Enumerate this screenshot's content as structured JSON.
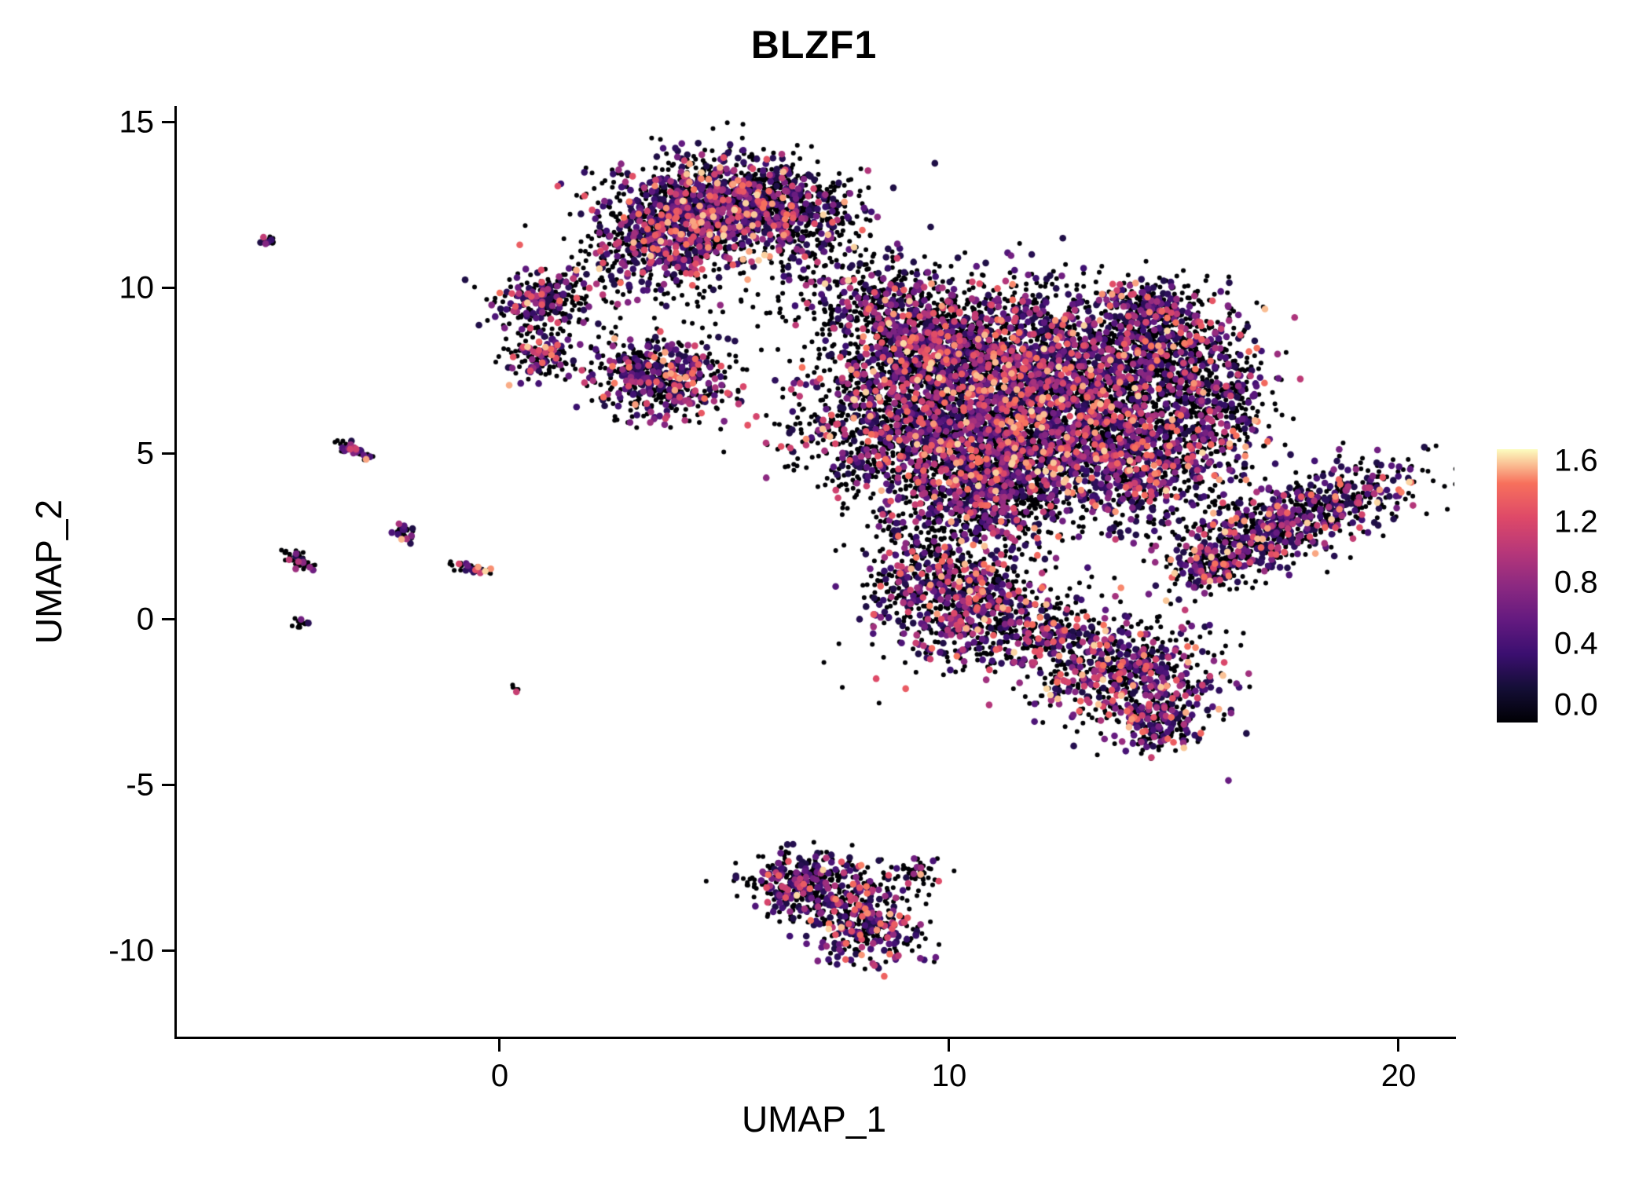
{
  "title": "BLZF1",
  "axes": {
    "x": {
      "label": "UMAP_1",
      "ticks": [
        "0",
        "10",
        "20"
      ]
    },
    "y": {
      "label": "UMAP_2",
      "ticks": [
        "15",
        "10",
        "5",
        "0",
        "-5",
        "-10"
      ]
    }
  },
  "legend": {
    "ticks": [
      "1.6",
      "1.2",
      "0.8",
      "0.4",
      "0.0"
    ]
  },
  "chart_data": {
    "type": "scatter",
    "title": "BLZF1",
    "xlabel": "UMAP_1",
    "ylabel": "UMAP_2",
    "xlim": [
      -7.2,
      21.2
    ],
    "ylim": [
      -12.6,
      15.5
    ],
    "x_tick_values": [
      0,
      10,
      20
    ],
    "y_tick_values": [
      15,
      10,
      5,
      0,
      -5,
      -10
    ],
    "grid": false,
    "legend_position": "right",
    "colorbar": {
      "tick_values": [
        1.6,
        1.2,
        0.8,
        0.4,
        0.0
      ],
      "range": [
        0,
        1.6
      ]
    },
    "colormap": [
      [
        0.0,
        "#000004"
      ],
      [
        0.2,
        "#140e36"
      ],
      [
        0.4,
        "#3b0f70"
      ],
      [
        0.6,
        "#641a80"
      ],
      [
        0.8,
        "#8c2981"
      ],
      [
        1.0,
        "#b73779"
      ],
      [
        1.2,
        "#de4968"
      ],
      [
        1.4,
        "#f7705c"
      ],
      [
        1.6,
        "#fcfdbf"
      ]
    ],
    "point_style": {
      "r_zero": 3.0,
      "r_expressed": 4.3
    },
    "sampling": {
      "seed": 42,
      "expr_min": 0.25,
      "expr_span": 1.3,
      "expr_power": 2
    },
    "clusters": [
      {
        "cx": 4.8,
        "cy": 12.4,
        "sx": 1.25,
        "sy": 0.75,
        "rot": 0,
        "n": 1300,
        "p_expr": 0.45
      },
      {
        "cx": 3.6,
        "cy": 11.2,
        "sx": 0.9,
        "sy": 0.6,
        "rot": 20,
        "n": 400,
        "p_expr": 0.45
      },
      {
        "cx": 6.3,
        "cy": 12.6,
        "sx": 0.8,
        "sy": 0.55,
        "rot": 0,
        "n": 300,
        "p_expr": 0.35
      },
      {
        "cx": 6.9,
        "cy": 11.3,
        "sx": 0.7,
        "sy": 0.7,
        "rot": 0,
        "n": 120,
        "p_expr": 0.25
      },
      {
        "cx": 4.5,
        "cy": 9.8,
        "sx": 1.6,
        "sy": 0.5,
        "rot": 0,
        "n": 60,
        "p_expr": 0.25
      },
      {
        "cx": 1.05,
        "cy": 9.55,
        "sx": 0.55,
        "sy": 0.45,
        "rot": 0,
        "n": 260,
        "p_expr": 0.4
      },
      {
        "cx": 0.95,
        "cy": 8.0,
        "sx": 0.45,
        "sy": 0.4,
        "rot": 0,
        "n": 140,
        "p_expr": 0.4
      },
      {
        "cx": 3.6,
        "cy": 7.3,
        "sx": 0.8,
        "sy": 0.62,
        "rot": -15,
        "n": 500,
        "p_expr": 0.48
      },
      {
        "cx": 9.6,
        "cy": 8.3,
        "sx": 1.1,
        "sy": 0.95,
        "rot": 0,
        "n": 1300,
        "p_expr": 0.4
      },
      {
        "cx": 12.1,
        "cy": 7.0,
        "sx": 1.5,
        "sy": 1.35,
        "rot": 0,
        "n": 2400,
        "p_expr": 0.45
      },
      {
        "cx": 10.4,
        "cy": 5.1,
        "sx": 1.3,
        "sy": 1.0,
        "rot": 0,
        "n": 1200,
        "p_expr": 0.42
      },
      {
        "cx": 13.9,
        "cy": 4.8,
        "sx": 1.1,
        "sy": 1.0,
        "rot": 0,
        "n": 900,
        "p_expr": 0.4
      },
      {
        "cx": 8.5,
        "cy": 6.2,
        "sx": 0.75,
        "sy": 1.0,
        "rot": 0,
        "n": 450,
        "p_expr": 0.4
      },
      {
        "cx": 14.9,
        "cy": 7.9,
        "sx": 0.95,
        "sy": 0.85,
        "rot": 0,
        "n": 650,
        "p_expr": 0.35
      },
      {
        "cx": 15.9,
        "cy": 6.1,
        "sx": 0.65,
        "sy": 0.95,
        "rot": 0,
        "n": 350,
        "p_expr": 0.3
      },
      {
        "cx": 14.4,
        "cy": 9.4,
        "sx": 0.65,
        "sy": 0.45,
        "rot": 0,
        "n": 250,
        "p_expr": 0.35
      },
      {
        "cx": 8.3,
        "cy": 9.9,
        "sx": 0.8,
        "sy": 0.6,
        "rot": 0,
        "n": 200,
        "p_expr": 0.3
      },
      {
        "cx": 11.0,
        "cy": 3.6,
        "sx": 0.9,
        "sy": 0.7,
        "rot": 0,
        "n": 500,
        "p_expr": 0.4
      },
      {
        "cx": 9.3,
        "cy": 2.2,
        "sx": 0.6,
        "sy": 0.8,
        "rot": 0,
        "n": 150,
        "p_expr": 0.3
      },
      {
        "cx": 7.0,
        "cy": 5.6,
        "sx": 0.7,
        "sy": 0.8,
        "rot": 0,
        "n": 80,
        "p_expr": 0.3
      },
      {
        "cx": 17.5,
        "cy": 2.9,
        "sx": 1.45,
        "sy": 0.55,
        "rot": 28,
        "n": 850,
        "p_expr": 0.45
      },
      {
        "cx": 15.9,
        "cy": 1.7,
        "sx": 0.5,
        "sy": 0.4,
        "rot": 20,
        "n": 150,
        "p_expr": 0.35
      },
      {
        "cx": 10.2,
        "cy": 0.6,
        "sx": 0.95,
        "sy": 0.95,
        "rot": 0,
        "n": 750,
        "p_expr": 0.42
      },
      {
        "cx": 11.9,
        "cy": -0.4,
        "sx": 0.7,
        "sy": 0.6,
        "rot": 0,
        "n": 250,
        "p_expr": 0.38
      },
      {
        "cx": 13.9,
        "cy": -1.7,
        "sx": 1.05,
        "sy": 0.8,
        "rot": -20,
        "n": 700,
        "p_expr": 0.45
      },
      {
        "cx": 14.6,
        "cy": -3.1,
        "sx": 0.5,
        "sy": 0.45,
        "rot": 0,
        "n": 150,
        "p_expr": 0.4
      },
      {
        "cx": 6.9,
        "cy": -8.0,
        "sx": 0.75,
        "sy": 0.5,
        "rot": -15,
        "n": 420,
        "p_expr": 0.45
      },
      {
        "cx": 8.2,
        "cy": -9.2,
        "sx": 0.55,
        "sy": 0.65,
        "rot": 0,
        "n": 320,
        "p_expr": 0.45
      },
      {
        "cx": 9.2,
        "cy": -7.6,
        "sx": 0.3,
        "sy": 0.25,
        "rot": 0,
        "n": 50,
        "p_expr": 0.3
      },
      {
        "cx": -5.15,
        "cy": 11.4,
        "sx": 0.1,
        "sy": 0.07,
        "rot": 30,
        "n": 14,
        "p_expr": 0.5
      },
      {
        "cx": -3.25,
        "cy": 5.15,
        "sx": 0.25,
        "sy": 0.09,
        "rot": -35,
        "n": 45,
        "p_expr": 0.35
      },
      {
        "cx": -2.1,
        "cy": 2.6,
        "sx": 0.16,
        "sy": 0.09,
        "rot": -35,
        "n": 28,
        "p_expr": 0.35
      },
      {
        "cx": -4.45,
        "cy": 1.8,
        "sx": 0.2,
        "sy": 0.1,
        "rot": -40,
        "n": 40,
        "p_expr": 0.3
      },
      {
        "cx": -0.5,
        "cy": 1.5,
        "sx": 0.3,
        "sy": 0.08,
        "rot": -15,
        "n": 35,
        "p_expr": 0.3
      },
      {
        "cx": -4.4,
        "cy": -0.1,
        "sx": 0.1,
        "sy": 0.07,
        "rot": 0,
        "n": 12,
        "p_expr": 0.2
      },
      {
        "cx": 0.35,
        "cy": -2.1,
        "sx": 0.07,
        "sy": 0.06,
        "rot": 0,
        "n": 7,
        "p_expr": 0.2
      }
    ]
  }
}
